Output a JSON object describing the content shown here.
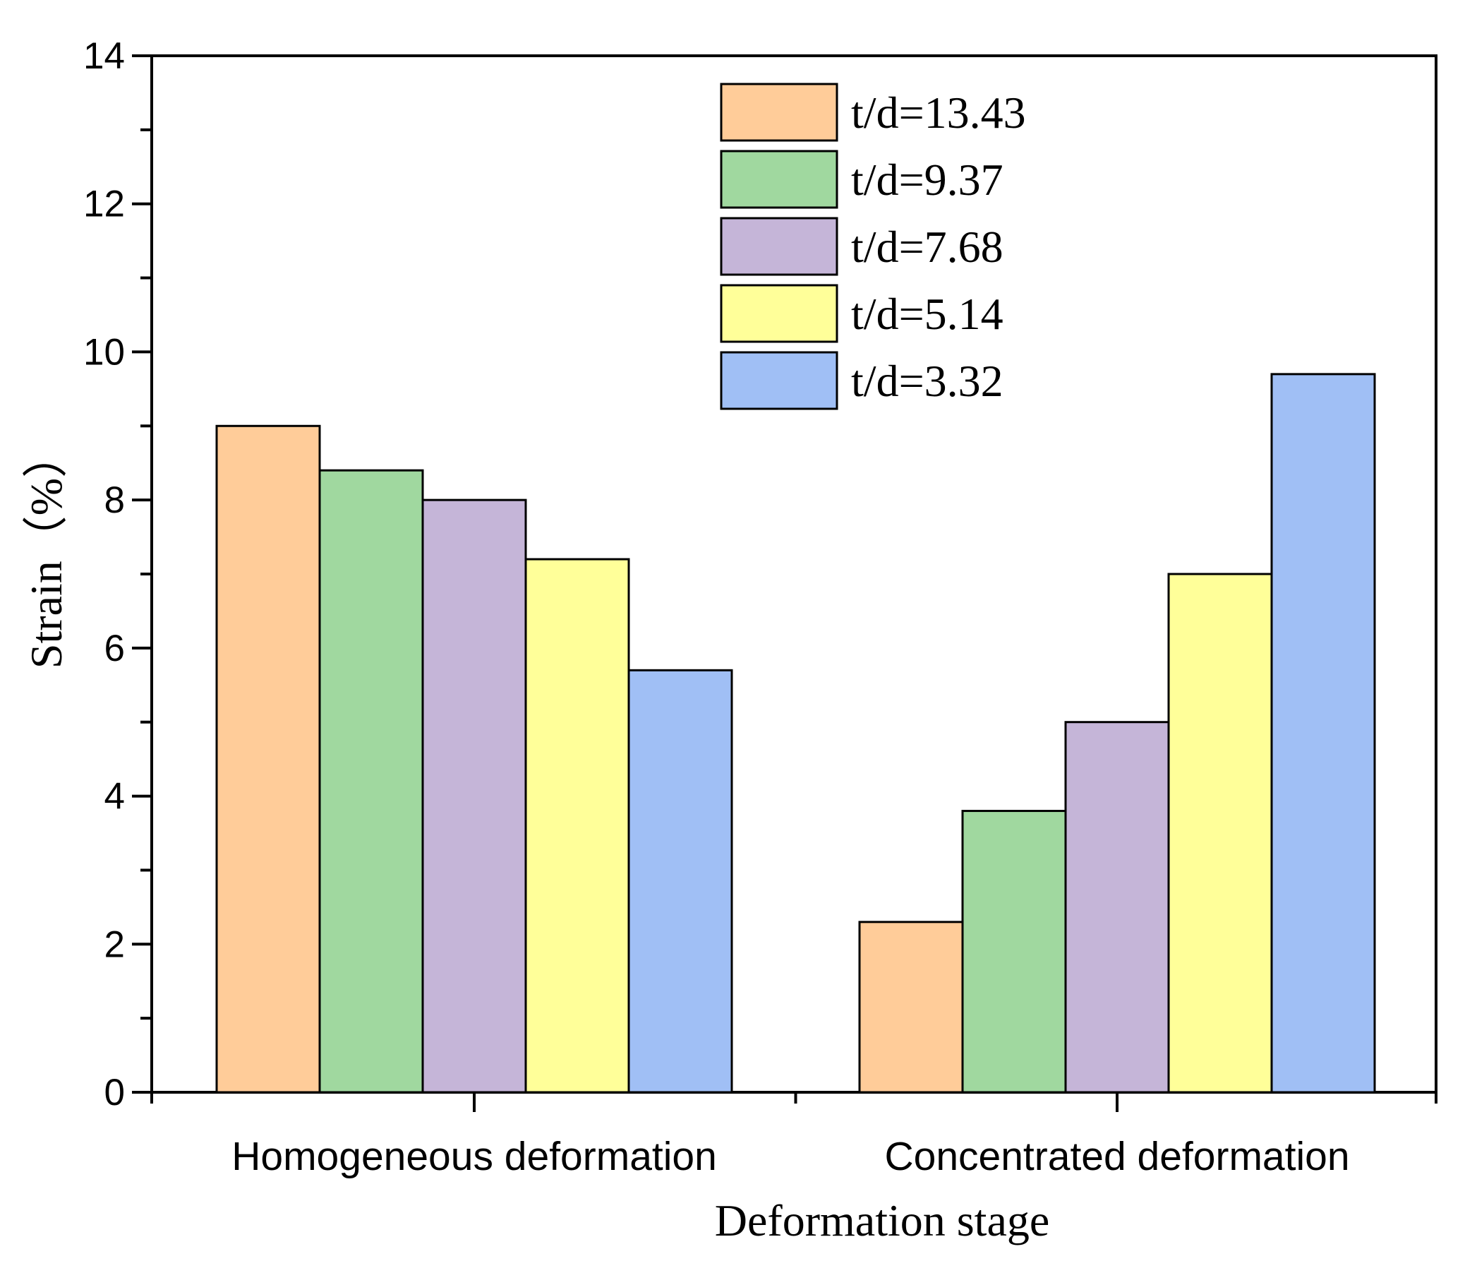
{
  "chart_data": {
    "type": "bar",
    "title": "",
    "xlabel": "Deformation stage",
    "ylabel": "Strain（%）",
    "ylim": [
      0,
      14
    ],
    "yticks": [
      0,
      2,
      4,
      6,
      8,
      10,
      12,
      14
    ],
    "grid": false,
    "legend_position": "top-center",
    "categories": [
      "Homogeneous deformation",
      "Concentrated deformation"
    ],
    "series": [
      {
        "name": "t/d=13.43",
        "color": "#FFCC99",
        "values": [
          9.0,
          2.3
        ]
      },
      {
        "name": "t/d=9.37",
        "color": "#A0D89F",
        "values": [
          8.4,
          3.8
        ]
      },
      {
        "name": "t/d=7.68",
        "color": "#C5B5D8",
        "values": [
          8.0,
          5.0
        ]
      },
      {
        "name": "t/d=5.14",
        "color": "#FFFF99",
        "values": [
          7.2,
          7.0
        ]
      },
      {
        "name": "t/d=3.32",
        "color": "#A0BFF5",
        "values": [
          5.7,
          9.7
        ]
      }
    ]
  }
}
